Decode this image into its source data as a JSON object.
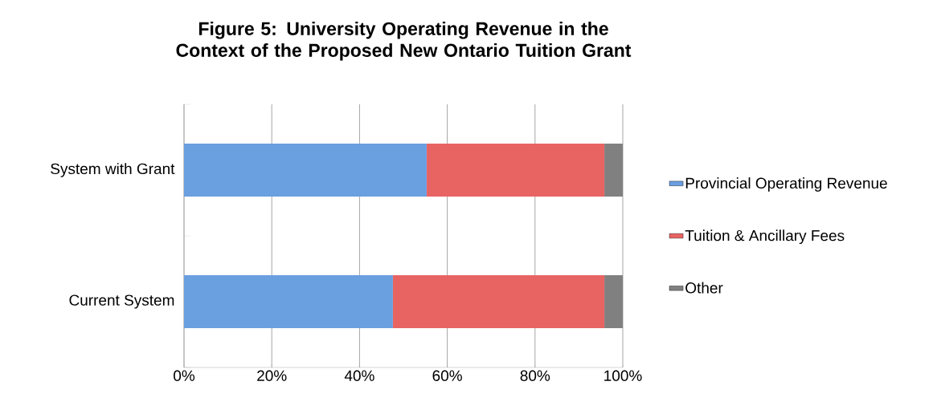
{
  "chart_data": {
    "type": "bar",
    "title": "Figure 5: University Operating Revenue in the Context of the Proposed New Ontario Tuition Grant",
    "categories": [
      "System with Grant",
      "Current System"
    ],
    "orientation": "horizontal",
    "stacked": true,
    "series": [
      {
        "name": "Provincial Operating Revenue",
        "color": "#6a9fe0",
        "values": [
          55.3,
          47.6
        ]
      },
      {
        "name": "Tuition & Ancillary Fees",
        "color": "#e86462",
        "values": [
          40.5,
          48.2
        ]
      },
      {
        "name": "Other",
        "color": "#808080",
        "values": [
          4.2,
          4.2
        ]
      }
    ],
    "xlim": [
      0,
      100
    ],
    "xticks": [
      {
        "value": 0,
        "label": "0%"
      },
      {
        "value": 20,
        "label": "20%"
      },
      {
        "value": 40,
        "label": "40%"
      },
      {
        "value": 60,
        "label": "60%"
      },
      {
        "value": 80,
        "label": "80%"
      },
      {
        "value": 100,
        "label": "100%"
      }
    ],
    "grid": "x",
    "legend": "right"
  }
}
